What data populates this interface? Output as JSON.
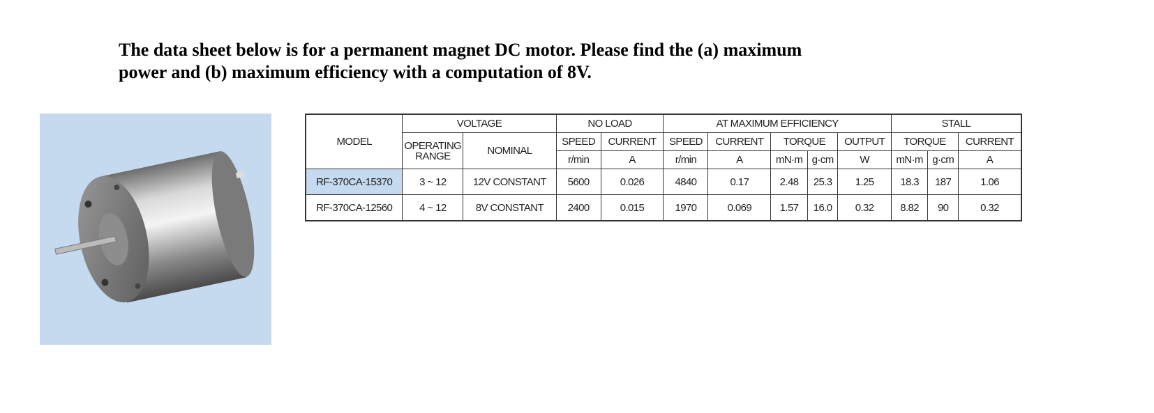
{
  "question": {
    "lines": [
      "The data sheet below is for a permanent magnet DC motor. Please find the (a) maximum",
      "power and (b) maximum efficiency with a computation of 8V."
    ]
  },
  "table": {
    "header_rows": [
      [
        "MODEL",
        "VOLTAGE",
        "NO LOAD",
        "AT MAXIMUM EFFICIENCY",
        "STALL"
      ],
      [
        "OPERATING RANGE",
        "NOMINAL",
        "SPEED",
        "CURRENT",
        "SPEED",
        "CURRENT",
        "TORQUE",
        "OUTPUT",
        "TORQUE",
        "CURRENT"
      ],
      [
        "r/min",
        "A",
        "r/min",
        "A",
        "mN·m",
        "g·cm",
        "W",
        "mN·m",
        "g·cm",
        "A"
      ]
    ],
    "rows": [
      [
        "RF-370CA-15370",
        "3 ~ 12",
        "12V CONSTANT",
        "5600",
        "0.026",
        "4840",
        "0.17",
        "2.48",
        "25.3",
        "1.25",
        "18.3",
        "187",
        "1.06"
      ],
      [
        "RF-370CA-12560",
        "4 ~ 12",
        "8V CONSTANT",
        "2400",
        "0.015",
        "1970",
        "0.069",
        "1.57",
        "16.0",
        "0.32",
        "8.82",
        "90",
        "0.32"
      ]
    ]
  }
}
